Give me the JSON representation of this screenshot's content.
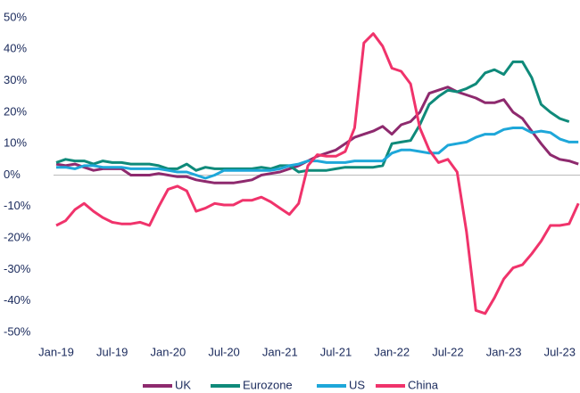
{
  "chart_data": {
    "type": "line",
    "categories": [
      "Jan-19",
      null,
      null,
      null,
      null,
      null,
      "Jul-19",
      null,
      null,
      null,
      null,
      null,
      "Jan-20",
      null,
      null,
      null,
      null,
      null,
      "Jul-20",
      null,
      null,
      null,
      null,
      null,
      "Jan-21",
      null,
      null,
      null,
      null,
      null,
      "Jul-21",
      null,
      null,
      null,
      null,
      null,
      "Jan-22",
      null,
      null,
      null,
      null,
      null,
      "Jul-22",
      null,
      null,
      null,
      null,
      null,
      "Jan-23",
      null,
      null,
      null,
      null,
      null,
      "Jul-23",
      null,
      null
    ],
    "series": [
      {
        "name": "UK",
        "color": "#8e2a6e",
        "values": [
          3.5,
          3,
          3.5,
          2.5,
          1.5,
          2,
          2,
          2,
          0,
          0,
          0,
          0.5,
          0,
          -0.5,
          -0.5,
          -1.5,
          -2,
          -2.5,
          -2.5,
          -2.5,
          -2,
          -1.5,
          0,
          0.5,
          1,
          2,
          3,
          4.5,
          6,
          7,
          8,
          10,
          12,
          13,
          14,
          15.5,
          13,
          16,
          17,
          20,
          26,
          27,
          28,
          26.5,
          25.5,
          24.5,
          23,
          23,
          24,
          20,
          18,
          14,
          10,
          6.5,
          5,
          4.5,
          3.5
        ]
      },
      {
        "name": "Eurozone",
        "color": "#0f8a7a",
        "values": [
          4,
          5,
          4.5,
          4.5,
          3.5,
          4.5,
          4,
          4,
          3.5,
          3.5,
          3.5,
          3,
          2,
          2,
          3.5,
          1.5,
          2.5,
          2,
          2,
          2,
          2,
          2,
          2.5,
          2,
          3,
          3,
          1,
          1.5,
          1.5,
          1.5,
          2,
          2.5,
          2.5,
          2.5,
          2.5,
          3,
          10,
          10.5,
          11,
          16,
          22.5,
          25,
          27,
          26.5,
          27.5,
          29,
          32.5,
          33.5,
          32,
          36,
          36,
          31,
          22.5,
          20,
          18,
          17,
          null
        ]
      },
      {
        "name": "US",
        "color": "#1ea7d9",
        "values": [
          2.5,
          2.5,
          2,
          3,
          3,
          2.5,
          2.5,
          2.5,
          2,
          2,
          2,
          2,
          1.5,
          1,
          1,
          0,
          -1,
          0,
          1.5,
          1.5,
          1.5,
          1.5,
          1.5,
          1.5,
          2,
          3,
          3.5,
          4.5,
          4.5,
          4,
          4,
          4,
          4.5,
          4.5,
          4.5,
          4.5,
          7,
          8,
          8,
          7.5,
          7,
          7,
          9.5,
          10,
          10.5,
          12,
          13,
          13,
          14.5,
          15,
          15,
          13.5,
          14,
          13.5,
          11.5,
          10.5,
          10.5
        ]
      },
      {
        "name": "China",
        "color": "#f0336b",
        "values": [
          -16,
          -14.5,
          -11,
          -9,
          -11.5,
          -13.5,
          -15,
          -15.5,
          -15.5,
          -15,
          -16,
          -10,
          -4.5,
          -3.5,
          -5,
          -11.5,
          -10.5,
          -9,
          -9.5,
          -9.5,
          -8,
          -8,
          -7,
          -8.5,
          -10.5,
          -12.5,
          -9,
          3,
          6.5,
          6,
          6,
          7.5,
          15,
          42,
          45,
          41,
          34,
          33,
          29,
          15,
          8,
          4,
          5,
          1,
          -18,
          -43,
          -44,
          -39,
          -33,
          -29.5,
          -28.5,
          -25,
          -21,
          -16,
          -16,
          -15.5,
          -9
        ]
      }
    ],
    "ylim": [
      -50,
      50
    ],
    "yticks": [
      {
        "value": 50,
        "label": "50%"
      },
      {
        "value": 40,
        "label": "40%"
      },
      {
        "value": 30,
        "label": "30%"
      },
      {
        "value": 20,
        "label": "20%"
      },
      {
        "value": 10,
        "label": "10%"
      },
      {
        "value": 0,
        "label": "0%"
      },
      {
        "value": -10,
        "label": "-10%"
      },
      {
        "value": -20,
        "label": "-20%"
      },
      {
        "value": -30,
        "label": "-30%"
      },
      {
        "value": -40,
        "label": "-40%"
      },
      {
        "value": -50,
        "label": "-50%"
      }
    ],
    "zero_line": true
  }
}
